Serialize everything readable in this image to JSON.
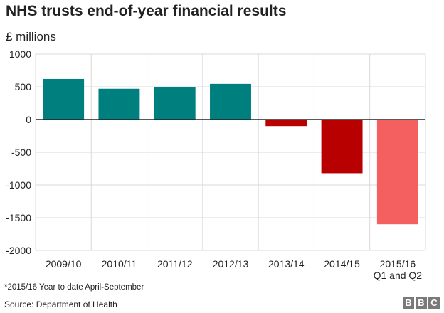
{
  "title": "NHS trusts end-of-year financial results",
  "unit_label": "£ millions",
  "footnote": "*2015/16 Year to date April-September",
  "source": "Source: Department of Health",
  "logo": [
    "B",
    "B",
    "C"
  ],
  "colors": {
    "positive": "#007f7f",
    "negative": "#b80000",
    "partial_year": "#f45f60",
    "gridline": "#d9d9d9",
    "zero_line": "#222222"
  },
  "chart_data": {
    "type": "bar",
    "title": "NHS trusts end-of-year financial results",
    "ylabel": "£ millions",
    "xlabel": "",
    "ylim": [
      -2000,
      1000
    ],
    "yticks": [
      1000,
      500,
      0,
      -500,
      -1000,
      -1500,
      -2000
    ],
    "grid": true,
    "categories": [
      [
        "2009/10"
      ],
      [
        "2010/11"
      ],
      [
        "2011/12"
      ],
      [
        "2012/13"
      ],
      [
        "2013/14"
      ],
      [
        "2014/15"
      ],
      [
        "2015/16",
        "Q1 and Q2"
      ]
    ],
    "values": [
      620,
      470,
      490,
      545,
      -100,
      -820,
      -1600
    ],
    "bar_colors": [
      "#007f7f",
      "#007f7f",
      "#007f7f",
      "#007f7f",
      "#b80000",
      "#b80000",
      "#f45f60"
    ]
  }
}
